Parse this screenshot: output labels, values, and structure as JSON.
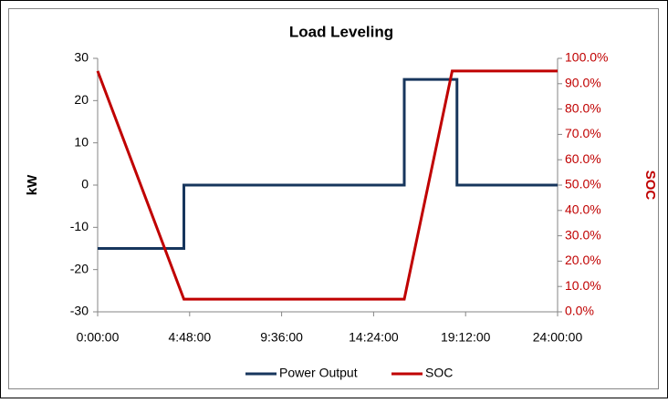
{
  "chart_data": {
    "type": "line",
    "title": "Load Leveling",
    "ylabel": "kW",
    "y2label": "SOC",
    "xlim": [
      0,
      24
    ],
    "xticks": [
      {
        "value": 0,
        "label": "0:00:00"
      },
      {
        "value": 4.8,
        "label": "4:48:00"
      },
      {
        "value": 9.6,
        "label": "9:36:00"
      },
      {
        "value": 14.4,
        "label": "14:24:00"
      },
      {
        "value": 19.2,
        "label": "19:12:00"
      },
      {
        "value": 24,
        "label": "24:00:00"
      }
    ],
    "ylim": [
      -30,
      30
    ],
    "yticks": [
      -30,
      -20,
      -10,
      0,
      10,
      20,
      30
    ],
    "y2lim": [
      0,
      100
    ],
    "y2ticks": [
      {
        "value": 0,
        "label": "0.0%"
      },
      {
        "value": 10,
        "label": "10.0%"
      },
      {
        "value": 20,
        "label": "20.0%"
      },
      {
        "value": 30,
        "label": "30.0%"
      },
      {
        "value": 40,
        "label": "40.0%"
      },
      {
        "value": 50,
        "label": "50.0%"
      },
      {
        "value": 60,
        "label": "60.0%"
      },
      {
        "value": 70,
        "label": "70.0%"
      },
      {
        "value": 80,
        "label": "80.0%"
      },
      {
        "value": 90,
        "label": "90.0%"
      },
      {
        "value": 100,
        "label": "100.0%"
      }
    ],
    "y2color": "#c00000",
    "legend": "bottom",
    "series": [
      {
        "name": "Power Output",
        "color": "#17365d",
        "x": [
          0,
          4.5,
          4.5,
          16,
          16,
          18.75,
          18.75,
          24
        ],
        "values": [
          -15,
          -15,
          0,
          0,
          25,
          25,
          0,
          0
        ]
      },
      {
        "name": "SOC",
        "color": "#c00000",
        "axis": "y2",
        "x": [
          0,
          4.5,
          16,
          18.5,
          24
        ],
        "values": [
          95,
          5,
          5,
          95,
          95
        ]
      }
    ]
  }
}
